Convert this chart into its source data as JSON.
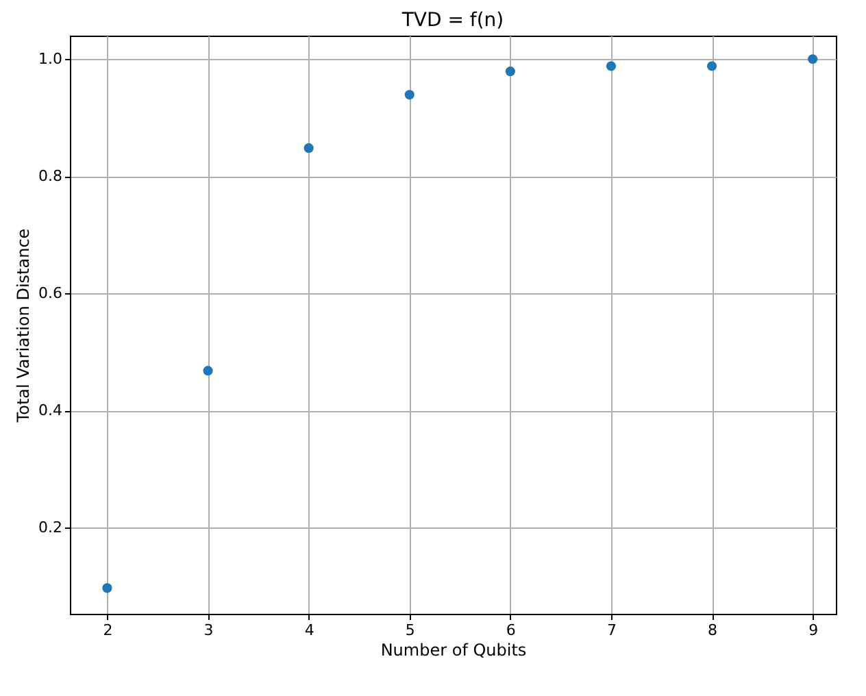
{
  "chart_data": {
    "type": "scatter",
    "title": "TVD = f(n)",
    "xlabel": "Number of Qubits",
    "ylabel": "Total Variation Distance",
    "x": [
      2,
      3,
      4,
      5,
      6,
      7,
      8,
      9
    ],
    "series": [
      {
        "color": "#1f77b4",
        "values": [
          0.097,
          0.468,
          0.848,
          0.939,
          0.979,
          0.988,
          0.988,
          1.0
        ]
      }
    ],
    "xlim": [
      1.63,
      9.23
    ],
    "xticks": [
      2,
      3,
      4,
      5,
      6,
      7,
      8,
      9
    ],
    "ylim": [
      0.053,
      1.04
    ],
    "yticks": [
      0.2,
      0.4,
      0.6,
      0.8,
      {
        "value": 1,
        "label": "1.0"
      }
    ],
    "grid": true,
    "marker": "circle",
    "legend": false
  }
}
